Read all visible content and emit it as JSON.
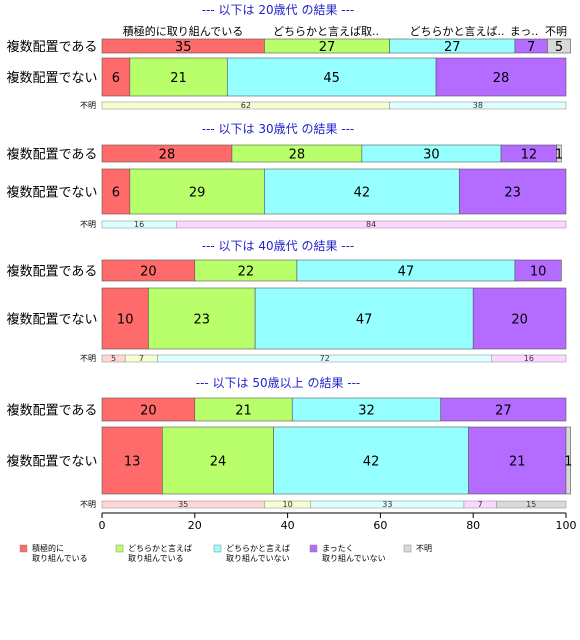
{
  "chart_data": {
    "type": "bar",
    "orientation": "horizontal",
    "stacked": true,
    "xlim": [
      0,
      100
    ],
    "x_ticks": [
      "0",
      "20",
      "40",
      "60",
      "80",
      "100"
    ],
    "header_labels": [
      "積極的に取り組んでいる",
      "どちらかと言えば取..",
      "どちらかと言えば..",
      "まっ..",
      "不明"
    ],
    "categories": [
      {
        "key": "c1",
        "legend": [
          "積極的に",
          "取り組んでいる"
        ],
        "color": "#ff6b6b",
        "light": "#ffd6d6"
      },
      {
        "key": "c2",
        "legend": [
          "どちらかと言えば",
          "取り組んでいる"
        ],
        "color": "#b9ff6b",
        "light": "#f4ffd2"
      },
      {
        "key": "c3",
        "legend": [
          "どちらかと言えば",
          "取り組んでいない"
        ],
        "color": "#96ffff",
        "light": "#dcffff"
      },
      {
        "key": "c4",
        "legend": [
          "まったく",
          "取り組んでいない"
        ],
        "color": "#b46bff",
        "light": "#ffd6ff"
      },
      {
        "key": "c5",
        "legend": [
          "不明"
        ],
        "color": "#d9d9d9",
        "light": "#d9d9d9"
      }
    ],
    "panels": [
      {
        "title": "--- 以下は 20歳代 の結果 ---",
        "rows": [
          {
            "label": "複数配置である",
            "values": [
              35,
              27,
              27,
              7,
              5
            ]
          },
          {
            "label": "複数配置でない",
            "values": [
              6,
              21,
              45,
              28,
              0
            ]
          }
        ],
        "unknown": {
          "label": "不明",
          "values": [
            0,
            62,
            38,
            0,
            0
          ]
        }
      },
      {
        "title": "--- 以下は 30歳代 の結果 ---",
        "rows": [
          {
            "label": "複数配置である",
            "values": [
              28,
              28,
              30,
              12,
              1
            ]
          },
          {
            "label": "複数配置でない",
            "values": [
              6,
              29,
              42,
              23,
              0
            ]
          }
        ],
        "unknown": {
          "label": "不明",
          "values": [
            0,
            0,
            16,
            84,
            0
          ]
        }
      },
      {
        "title": "--- 以下は 40歳代 の結果 ---",
        "rows": [
          {
            "label": "複数配置である",
            "values": [
              20,
              22,
              47,
              10,
              0
            ]
          },
          {
            "label": "複数配置でない",
            "values": [
              10,
              23,
              47,
              20,
              0
            ]
          }
        ],
        "unknown": {
          "label": "不明",
          "values": [
            5,
            7,
            72,
            16,
            0
          ]
        }
      },
      {
        "title": "--- 以下は 50歳以上 の結果 ---",
        "rows": [
          {
            "label": "複数配置である",
            "values": [
              20,
              21,
              32,
              27,
              0
            ]
          },
          {
            "label": "複数配置でない",
            "values": [
              13,
              24,
              42,
              21,
              1
            ]
          }
        ],
        "unknown": {
          "label": "不明",
          "values": [
            35,
            10,
            33,
            7,
            15
          ]
        }
      }
    ]
  }
}
